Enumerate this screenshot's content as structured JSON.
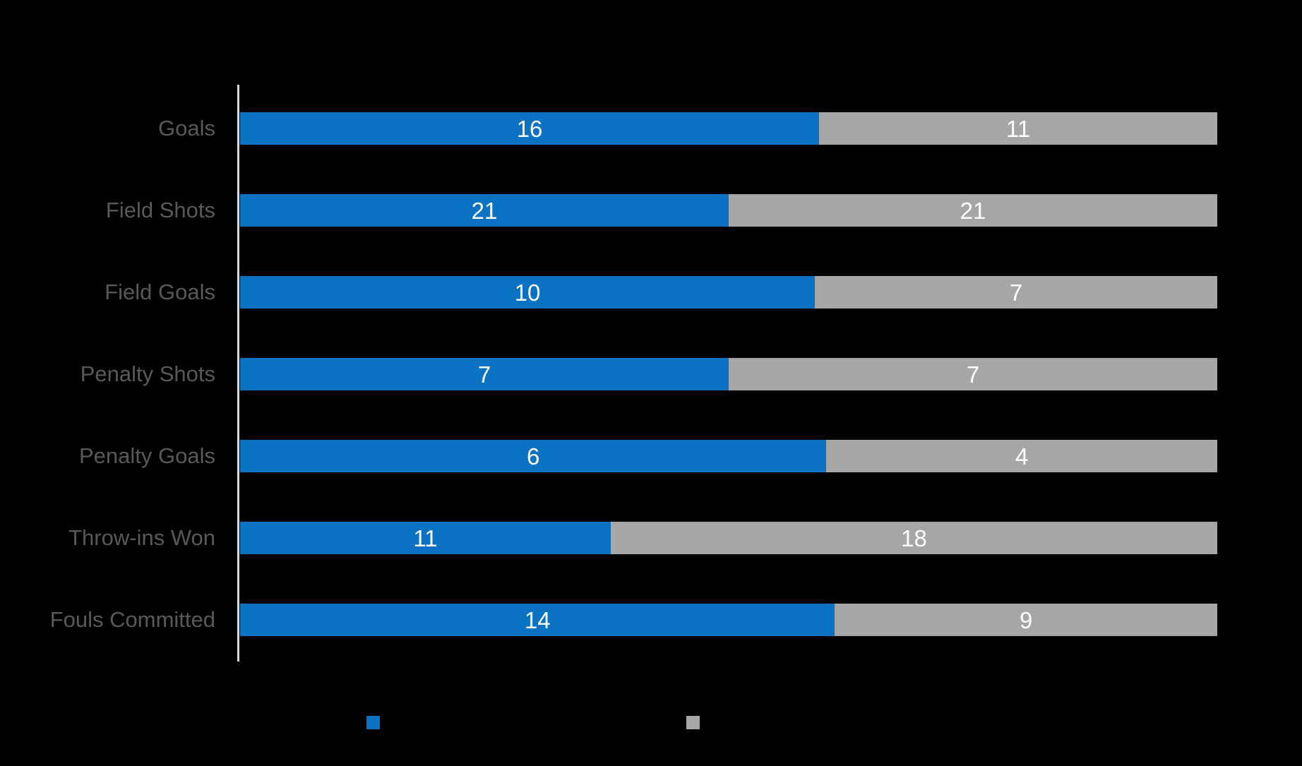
{
  "chart_data": {
    "type": "bar",
    "orientation": "horizontal",
    "stacking": "100-percent-stacked",
    "title": "",
    "xlabel": "",
    "ylabel": "",
    "grid": false,
    "legend_position": "bottom",
    "categories": [
      "Goals",
      "Field Shots",
      "Field Goals",
      "Penalty Shots",
      "Penalty Goals",
      "Throw-ins Won",
      "Fouls Committed"
    ],
    "series": [
      {
        "name": "blue-series",
        "color": "#0A72C2",
        "values": [
          16,
          21,
          10,
          7,
          6,
          11,
          14
        ]
      },
      {
        "name": "gray-series",
        "color": "#A6A6A6",
        "values": [
          11,
          21,
          7,
          7,
          4,
          18,
          9
        ]
      }
    ],
    "value_label_color": "#FFFFFF",
    "category_label_color": "#595959",
    "axis_line_color": "#D9D9D9",
    "background_color": "#000000"
  }
}
